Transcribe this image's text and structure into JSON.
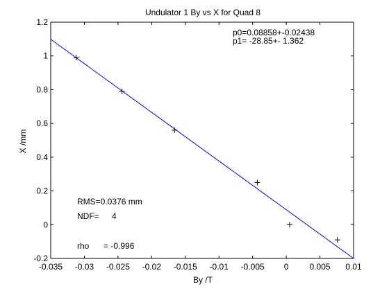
{
  "chart_data": {
    "type": "scatter",
    "title": "Undulator 1 By vs X for Quad 8",
    "xlabel": "By /T",
    "ylabel": "X /mm",
    "xlim": [
      -0.035,
      0.01
    ],
    "ylim": [
      -0.2,
      1.2
    ],
    "x_ticks": [
      -0.035,
      -0.03,
      -0.025,
      -0.02,
      -0.015,
      -0.01,
      -0.005,
      0,
      0.005,
      0.01
    ],
    "x_tick_labels": [
      "-0.035",
      "-0.03",
      "-0.025",
      "-0.02",
      "-0.015",
      "-0.01",
      "-0.005",
      "0",
      "0.005",
      "0.01"
    ],
    "y_ticks": [
      -0.2,
      0,
      0.2,
      0.4,
      0.6,
      0.8,
      1,
      1.2
    ],
    "y_tick_labels": [
      "-0.2",
      "0",
      "0.2",
      "0.4",
      "0.6",
      "0.8",
      "1",
      "1.2"
    ],
    "grid": false,
    "series": [
      {
        "marker": "+",
        "color": "#000000",
        "points": [
          {
            "x": -0.0312,
            "y": 0.99
          },
          {
            "x": -0.0244,
            "y": 0.79
          },
          {
            "x": -0.0166,
            "y": 0.56
          },
          {
            "x": -0.0043,
            "y": 0.25
          },
          {
            "x": 0.0005,
            "y": 0.0
          },
          {
            "x": 0.0076,
            "y": -0.09
          }
        ]
      }
    ],
    "fit": {
      "color": "#0000ff",
      "p0": 0.08858,
      "p1": -28.85,
      "line": [
        {
          "x": -0.035,
          "y": 1.0983
        },
        {
          "x": 0.01,
          "y": -0.1999
        }
      ]
    },
    "annotations": {
      "p0": "p0=0.08858+-0.02438",
      "p1": "p1= -28.85+- 1.362",
      "rms": "RMS=0.0376 mm",
      "ndf_label": "NDF=",
      "ndf_value": "4",
      "rho_label": "rho",
      "rho_value": "= -0.996"
    }
  }
}
